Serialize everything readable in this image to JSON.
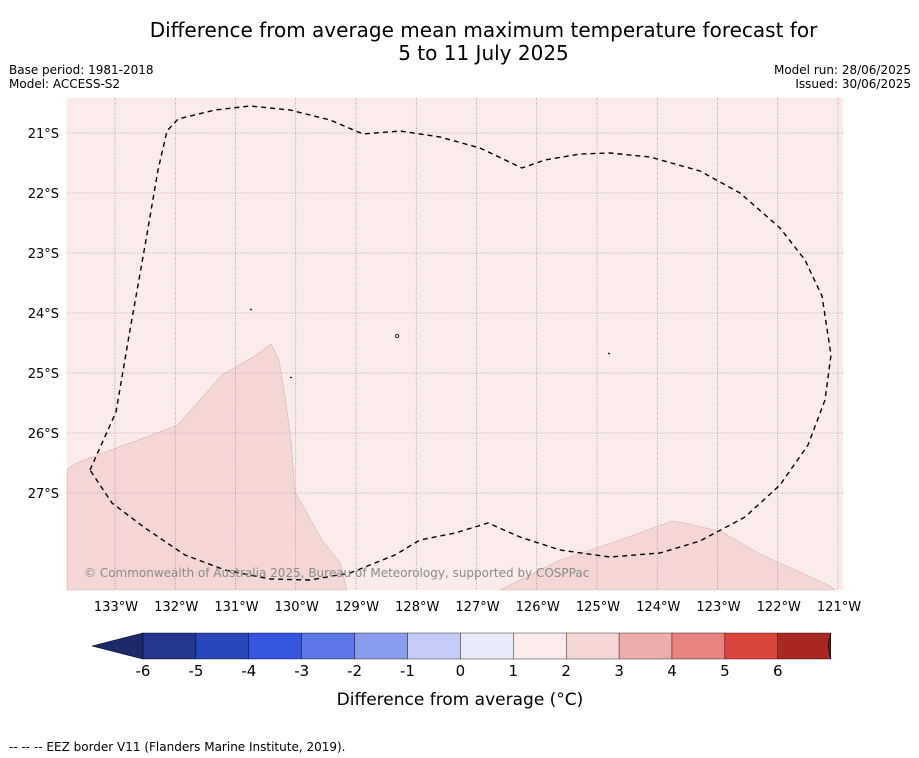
{
  "title": {
    "line1": "Difference from average mean maximum temperature forecast for",
    "line2": "5 to 11 July 2025"
  },
  "meta": {
    "base_period": "Base period: 1981-2018",
    "model": "Model: ACCESS-S2",
    "model_run": "Model run: 28/06/2025",
    "issued": "Issued: 30/06/2025"
  },
  "map": {
    "lat_labels": [
      "21°S",
      "22°S",
      "23°S",
      "24°S",
      "25°S",
      "26°S",
      "27°S"
    ],
    "lon_labels": [
      "133°W",
      "132°W",
      "131°W",
      "130°W",
      "129°W",
      "128°W",
      "127°W",
      "126°W",
      "125°W",
      "124°W",
      "123°W",
      "122°W",
      "121°W"
    ],
    "copyright": "© Commonwealth of Australia 2025, Bureau of Meteorology, supported by COSPPac",
    "background_color": "#fbeceb",
    "anomaly_color": "#f4d6d5",
    "land_label": ""
  },
  "colorbar": {
    "ticks": [
      "-6",
      "-5",
      "-4",
      "-3",
      "-2",
      "-1",
      "0",
      "1",
      "2",
      "3",
      "4",
      "5",
      "6"
    ],
    "colors": [
      "#24368f",
      "#2a46bb",
      "#3656e0",
      "#5b77e8",
      "#8a9cee",
      "#c3cbf6",
      "#e8ebfb",
      "#fbeceb",
      "#f4d6d5",
      "#edaeab",
      "#e8847e",
      "#da473f",
      "#aa2822"
    ],
    "under_color": "#1c2a6b",
    "over_color": "#7a1d18",
    "label": "Difference from average (°C)"
  },
  "footer": {
    "legend_text": "-- -- -- EEZ border V11 (Flanders Marine Institute, 2019)."
  }
}
